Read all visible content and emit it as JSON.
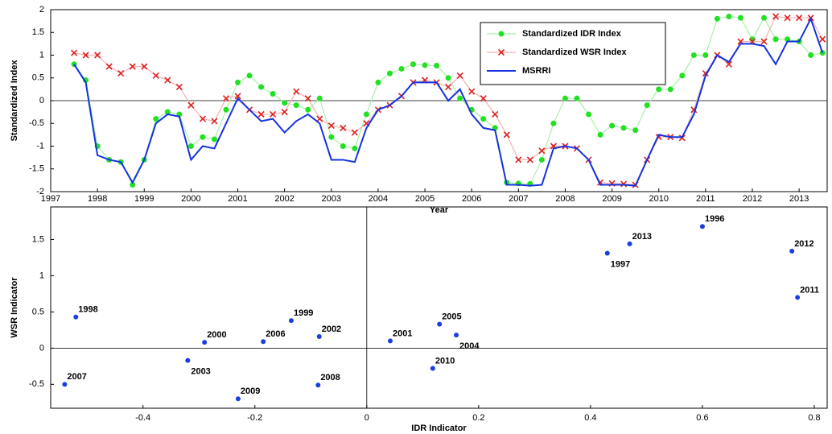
{
  "chart_data": [
    {
      "type": "line",
      "x_label": "Year",
      "y_label": "Standardized Index",
      "xlim": [
        1997,
        2013.6
      ],
      "xticks": [
        1997,
        1998,
        1999,
        2000,
        2001,
        2002,
        2003,
        2004,
        2005,
        2006,
        2007,
        2008,
        2009,
        2010,
        2011,
        2012,
        2013
      ],
      "ylim": [
        -2,
        2
      ],
      "yticks": [
        -2,
        -1.5,
        -1,
        -0.5,
        0,
        0.5,
        1,
        1.5,
        2
      ],
      "legend": "upper right",
      "x": [
        1997.5,
        1997.75,
        1998,
        1998.25,
        1998.5,
        1998.75,
        1999,
        1999.25,
        1999.5,
        1999.75,
        2000,
        2000.25,
        2000.5,
        2000.75,
        2001,
        2001.25,
        2001.5,
        2001.75,
        2002,
        2002.25,
        2002.5,
        2002.75,
        2003,
        2003.25,
        2003.5,
        2003.75,
        2004,
        2004.25,
        2004.5,
        2004.75,
        2005,
        2005.25,
        2005.5,
        2005.75,
        2006,
        2006.25,
        2006.5,
        2006.75,
        2007,
        2007.25,
        2007.5,
        2007.75,
        2008,
        2008.25,
        2008.5,
        2008.75,
        2009,
        2009.25,
        2009.5,
        2009.75,
        2010,
        2010.25,
        2010.5,
        2010.75,
        2011,
        2011.25,
        2011.5,
        2011.75,
        2012,
        2012.25,
        2012.5,
        2012.75,
        2013,
        2013.25,
        2013.5
      ],
      "series": [
        {
          "name": "Standardized IDR Index",
          "color": "#22e022",
          "line_color": "#a8f0a8",
          "marker": "o",
          "values": [
            0.8,
            0.45,
            -1.0,
            -1.3,
            -1.35,
            -1.85,
            -1.3,
            -0.4,
            -0.25,
            -0.3,
            -1.0,
            -0.8,
            -0.85,
            -0.2,
            0.4,
            0.55,
            0.3,
            0.15,
            -0.05,
            -0.1,
            -0.2,
            0.05,
            -0.8,
            -1.0,
            -1.05,
            -0.3,
            0.4,
            0.6,
            0.7,
            0.8,
            0.78,
            0.77,
            0.5,
            0.05,
            -0.2,
            -0.4,
            -0.6,
            -1.8,
            -1.82,
            -1.83,
            -1.3,
            -0.5,
            0.05,
            0.05,
            -0.3,
            -0.75,
            -0.55,
            -0.6,
            -0.65,
            -0.1,
            0.25,
            0.25,
            0.55,
            1.0,
            1.0,
            1.8,
            1.85,
            1.82,
            1.35,
            1.82,
            1.35,
            1.35,
            1.3,
            1.0,
            1.05
          ]
        },
        {
          "name": "Standardized WSR Index",
          "color": "#dd2020",
          "line_color": "#f4b0b0",
          "marker": "x",
          "values": [
            1.05,
            1.0,
            1.0,
            0.75,
            0.6,
            0.75,
            0.75,
            0.55,
            0.45,
            0.3,
            -0.1,
            -0.4,
            -0.45,
            0.05,
            0.1,
            -0.2,
            -0.3,
            -0.3,
            -0.25,
            0.2,
            0.05,
            -0.4,
            -0.55,
            -0.6,
            -0.7,
            -0.5,
            -0.2,
            -0.1,
            0.1,
            0.4,
            0.45,
            0.4,
            0.3,
            0.55,
            0.2,
            0.05,
            -0.3,
            -0.75,
            -1.3,
            -1.3,
            -1.1,
            -1.0,
            -1.0,
            -1.05,
            -1.3,
            -1.8,
            -1.82,
            -1.83,
            -1.85,
            -1.3,
            -0.8,
            -0.8,
            -0.82,
            -0.2,
            0.6,
            1.0,
            0.8,
            1.3,
            1.3,
            1.3,
            1.85,
            1.82,
            1.82,
            1.82,
            1.35
          ]
        },
        {
          "name": "MSRRI",
          "color": "#1533dd",
          "line_color": "#1533dd",
          "marker": "none",
          "values": [
            0.8,
            0.4,
            -1.2,
            -1.3,
            -1.35,
            -1.8,
            -1.3,
            -0.5,
            -0.3,
            -0.35,
            -1.3,
            -1.0,
            -1.05,
            -0.5,
            0.05,
            -0.2,
            -0.45,
            -0.4,
            -0.7,
            -0.45,
            -0.3,
            -0.5,
            -1.3,
            -1.3,
            -1.35,
            -0.6,
            -0.2,
            -0.1,
            0.1,
            0.4,
            0.4,
            0.4,
            0.0,
            0.25,
            -0.3,
            -0.6,
            -0.65,
            -1.85,
            -1.85,
            -1.87,
            -1.85,
            -1.05,
            -1.0,
            -1.05,
            -1.3,
            -1.85,
            -1.85,
            -1.85,
            -1.87,
            -1.3,
            -0.75,
            -0.8,
            -0.8,
            -0.3,
            0.55,
            1.0,
            0.85,
            1.25,
            1.25,
            1.2,
            0.8,
            1.3,
            1.3,
            1.8,
            1.05
          ]
        }
      ]
    },
    {
      "type": "scatter",
      "x_label": "IDR Indicator",
      "y_label": "WSR Indicator",
      "color": "#1a3ee0",
      "xlim": [
        -0.565,
        0.823
      ],
      "xticks": [
        -0.4,
        -0.2,
        0,
        0.2,
        0.4,
        0.6,
        0.8
      ],
      "ylim": [
        -0.83,
        1.95
      ],
      "yticks": [
        -0.5,
        0,
        0.5,
        1,
        1.5
      ],
      "point_labels": [
        "1996",
        "1997",
        "1998",
        "1999",
        "2000",
        "2001",
        "2002",
        "2003",
        "2004",
        "2005",
        "2006",
        "2007",
        "2008",
        "2009",
        "2010",
        "2011",
        "2012",
        "2013"
      ],
      "x": [
        0.6,
        0.43,
        -0.52,
        -0.135,
        -0.29,
        0.042,
        -0.085,
        -0.32,
        0.16,
        0.13,
        -0.185,
        -0.54,
        -0.087,
        -0.23,
        0.118,
        0.77,
        0.76,
        0.47
      ],
      "values": [
        1.68,
        1.31,
        0.43,
        0.38,
        0.08,
        0.1,
        0.16,
        -0.17,
        0.18,
        0.33,
        0.09,
        -0.5,
        -0.51,
        -0.7,
        -0.28,
        0.7,
        1.34,
        1.44
      ]
    }
  ]
}
